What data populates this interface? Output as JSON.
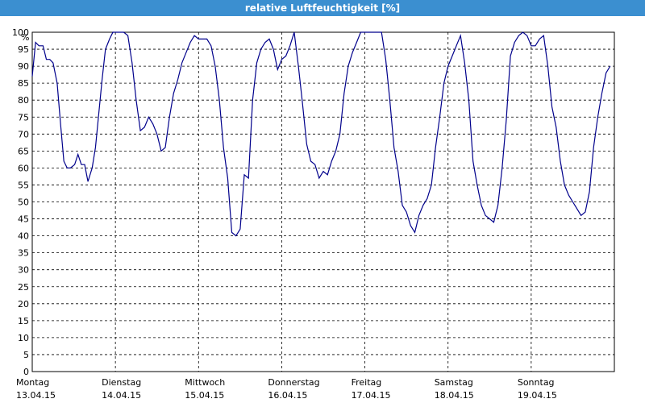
{
  "window": {
    "title": "relative Luftfeuchtigkeit [%]"
  },
  "chart_data": {
    "type": "line",
    "title": "relative Luftfeuchtigkeit [%]",
    "ylabel": "%",
    "xlabel": "",
    "ylim": [
      0,
      100
    ],
    "ystep": 5,
    "grid": true,
    "line_color": "#00008b",
    "x_ticks": [
      {
        "day": "Montag",
        "date": "13.04.15"
      },
      {
        "day": "Dienstag",
        "date": "14.04.15"
      },
      {
        "day": "Mittwoch",
        "date": "15.04.15"
      },
      {
        "day": "Donnerstag",
        "date": "16.04.15"
      },
      {
        "day": "Freitag",
        "date": "17.04.15"
      },
      {
        "day": "Samstag",
        "date": "18.04.15"
      },
      {
        "day": "Sonntag",
        "date": "19.04.15"
      }
    ],
    "series": [
      {
        "x_days": [
          0,
          0.04,
          0.08,
          0.13,
          0.17,
          0.21,
          0.25,
          0.3,
          0.34,
          0.38,
          0.42,
          0.46,
          0.51,
          0.55,
          0.59,
          0.63,
          0.67,
          0.72,
          0.76,
          0.8,
          0.84,
          0.88,
          0.93,
          0.97,
          1.0,
          1.05,
          1.1,
          1.15,
          1.2,
          1.25,
          1.3,
          1.35,
          1.4,
          1.45,
          1.5,
          1.55,
          1.6,
          1.65,
          1.7,
          1.75,
          1.8,
          1.85,
          1.9,
          1.95,
          2.0,
          2.05,
          2.1,
          2.15,
          2.2,
          2.25,
          2.3,
          2.35,
          2.4,
          2.45,
          2.5,
          2.55,
          2.6,
          2.65,
          2.7,
          2.75,
          2.8,
          2.85,
          2.9,
          2.95,
          3.0,
          3.05,
          3.1,
          3.15,
          3.2,
          3.25,
          3.3,
          3.35,
          3.4,
          3.45,
          3.5,
          3.55,
          3.6,
          3.65,
          3.7,
          3.75,
          3.8,
          3.85,
          3.9,
          3.95,
          4.0,
          4.05,
          4.1,
          4.15,
          4.2,
          4.25,
          4.3,
          4.35,
          4.4,
          4.45,
          4.5,
          4.55,
          4.6,
          4.65,
          4.7,
          4.75,
          4.8,
          4.85,
          4.9,
          4.95,
          5.0,
          5.05,
          5.1,
          5.15,
          5.2,
          5.25,
          5.3,
          5.35,
          5.4,
          5.45,
          5.5,
          5.55,
          5.6,
          5.65,
          5.7,
          5.75,
          5.8,
          5.85,
          5.9,
          5.95,
          6.0,
          6.05,
          6.1,
          6.15,
          6.2,
          6.25,
          6.3,
          6.35,
          6.4,
          6.45,
          6.5,
          6.55,
          6.6,
          6.65,
          6.7,
          6.75,
          6.8,
          6.85,
          6.9,
          6.95
        ],
        "values": [
          87,
          97,
          96,
          96,
          92,
          92,
          91,
          85,
          73,
          62,
          60,
          60,
          61,
          64,
          61,
          61,
          56,
          60,
          66,
          76,
          86,
          95,
          98,
          100,
          100,
          100,
          100,
          99,
          91,
          80,
          71,
          72,
          75,
          73,
          70,
          65,
          66,
          75,
          82,
          86,
          91,
          94,
          97,
          99,
          98,
          98,
          98,
          96,
          90,
          80,
          66,
          57,
          41,
          40,
          42,
          58,
          57,
          80,
          91,
          95,
          97,
          98,
          95,
          89,
          92,
          93,
          96,
          100,
          90,
          79,
          67,
          62,
          61,
          57,
          59,
          58,
          62,
          65,
          70,
          82,
          90,
          94,
          97,
          100,
          100,
          100,
          100,
          100,
          100,
          92,
          80,
          66,
          59,
          49,
          47,
          43,
          41,
          46,
          49,
          51,
          55,
          66,
          75,
          85,
          90,
          93,
          96,
          99,
          91,
          80,
          62,
          55,
          49,
          46,
          45,
          44,
          49,
          60,
          74,
          93,
          97,
          99,
          100,
          99,
          96,
          96,
          98,
          99,
          90,
          78,
          72,
          62,
          55,
          52,
          50,
          48,
          46,
          47,
          53,
          66,
          75,
          82,
          88,
          90
        ]
      }
    ]
  }
}
